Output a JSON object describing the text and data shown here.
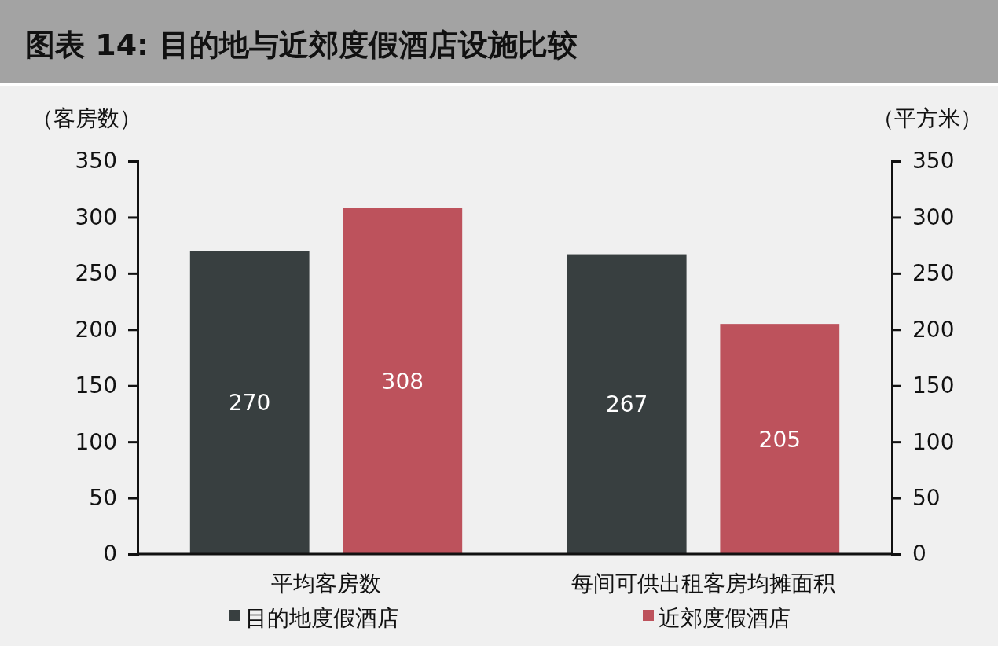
{
  "chart_data": {
    "type": "bar",
    "title": "图表 14:  目的地与近郊度假酒店设施比较",
    "ylabel": "（客房数）",
    "y2label": "（平方米）",
    "categories": [
      "平均客房数",
      "每间可供出租客房均摊面积"
    ],
    "series": [
      {
        "name": "目的地度假酒店",
        "color": "#383f40",
        "values": [
          270,
          267
        ]
      },
      {
        "name": "近郊度假酒店",
        "color": "#bd525c",
        "values": [
          308,
          205
        ]
      }
    ],
    "ylim": [
      0,
      350
    ],
    "yticks": [
      0,
      50,
      100,
      150,
      200,
      250,
      300,
      350
    ],
    "y2lim": [
      0,
      350
    ],
    "y2ticks": [
      0,
      50,
      100,
      150,
      200,
      250,
      300,
      350
    ],
    "data_labels": true,
    "legend": "bottom",
    "grid": false
  }
}
